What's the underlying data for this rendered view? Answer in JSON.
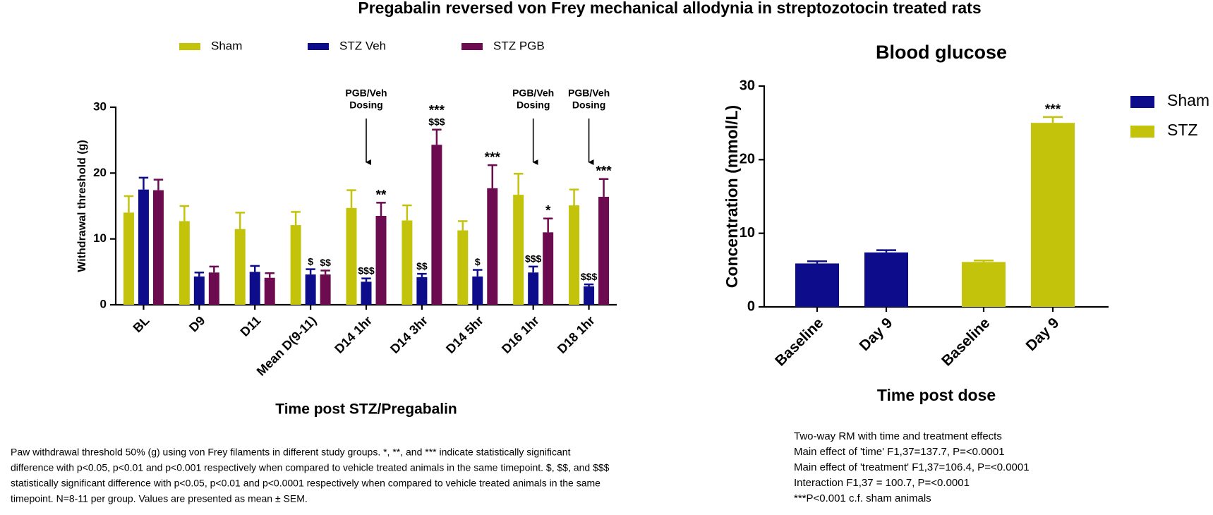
{
  "title": "Pregabalin reversed von Frey mechanical allodynia in streptozotocin treated rats",
  "chart_data": [
    {
      "type": "bar",
      "legend": "top",
      "x_label": "Time post STZ/Pregabalin",
      "y_label": "Withdrawal threshold (g)",
      "categories": [
        "BL",
        "D9",
        "D11",
        "Mean D(9-11)",
        "D14 1hr",
        "D14 3hr",
        "D14 5hr",
        "D16 1hr",
        "D18 1hr"
      ],
      "ylim": [
        0,
        30
      ],
      "yticks": [
        0,
        10,
        20,
        30
      ],
      "series": [
        {
          "name": "Sham",
          "color": "#c4c30b",
          "values": [
            14,
            12.7,
            11.5,
            12.1,
            14.7,
            12.8,
            11.3,
            16.7,
            15.1
          ],
          "errors": [
            2.5,
            2.3,
            2.5,
            2.0,
            2.7,
            2.3,
            1.4,
            3.2,
            2.4
          ],
          "labels": [
            null,
            null,
            null,
            null,
            null,
            null,
            null,
            null,
            null
          ]
        },
        {
          "name": "STZ Veh",
          "color": "#0d0d8c",
          "values": [
            17.5,
            4.3,
            5.0,
            4.6,
            3.5,
            4.2,
            4.3,
            4.9,
            2.8
          ],
          "errors": [
            1.8,
            0.6,
            0.9,
            0.8,
            0.5,
            0.5,
            1.0,
            0.9,
            0.3
          ],
          "labels": [
            null,
            null,
            null,
            [
              "$"
            ],
            [
              "$$$"
            ],
            [
              "$$"
            ],
            [
              "$"
            ],
            [
              "$$$"
            ],
            [
              "$$$"
            ]
          ]
        },
        {
          "name": "STZ PGB",
          "color": "#6c0b50",
          "values": [
            17.4,
            4.9,
            4.1,
            4.6,
            13.5,
            24.3,
            17.7,
            11.0,
            16.4
          ],
          "errors": [
            1.6,
            0.9,
            0.7,
            0.6,
            2.0,
            2.3,
            3.5,
            2.1,
            2.7
          ],
          "labels": [
            null,
            null,
            null,
            [
              "$$"
            ],
            [
              "**"
            ],
            [
              "$$$",
              "***"
            ],
            [
              "***"
            ],
            [
              "*"
            ],
            [
              "***"
            ]
          ]
        }
      ],
      "dosing": [
        null,
        null,
        null,
        null,
        [
          "PGB/Veh",
          "Dosing"
        ],
        null,
        null,
        [
          "PGB/Veh",
          "Dosing"
        ],
        [
          "PGB/Veh",
          "Dosing"
        ]
      ]
    },
    {
      "type": "bar",
      "legend": "right",
      "title": "Blood glucose",
      "x_label": "Time post dose",
      "y_label": "Concentration (mmol/L)",
      "categories": [
        "Baseline",
        "Day 9",
        "Baseline",
        "Day 9"
      ],
      "ylim": [
        0,
        30
      ],
      "yticks": [
        0,
        10,
        20,
        30
      ],
      "series": [
        {
          "name": "Sham",
          "color": "#0d0d8c",
          "values": [
            5.9,
            7.4,
            null,
            null
          ],
          "errors": [
            0.3,
            0.3,
            null,
            null
          ],
          "labels": [
            null,
            null,
            null,
            null
          ]
        },
        {
          "name": "STZ",
          "color": "#c4c30b",
          "values": [
            null,
            null,
            6.1,
            25.0
          ],
          "errors": [
            null,
            null,
            0.2,
            0.8
          ],
          "labels": [
            null,
            null,
            null,
            [
              "***"
            ]
          ]
        }
      ]
    }
  ],
  "captions": {
    "left": [
      "Paw withdrawal threshold 50% (g) using von Frey filaments in different study groups. *, **, and *** indicate statistically significant",
      "difference with p<0.05, p<0.01 and p<0.001 respectively when compared to vehicle treated animals in the same timepoint. $, $$, and $$$",
      "statistically significant difference with p<0.05, p<0.01 and p<0.0001 respectively when compared to vehicle treated animals in the same",
      "timepoint. N=8-11 per group. Values are presented as mean ± SEM."
    ],
    "right": [
      "Two-way RM with time and treatment effects",
      "Main effect of 'time' F1,37=137.7, P=<0.0001",
      "Main effect of 'treatment' F1,37=106.4, P=<0.0001",
      "Interaction F1,37 = 100.7, P=<0.0001",
      "***P<0.001 c.f. sham animals"
    ]
  }
}
